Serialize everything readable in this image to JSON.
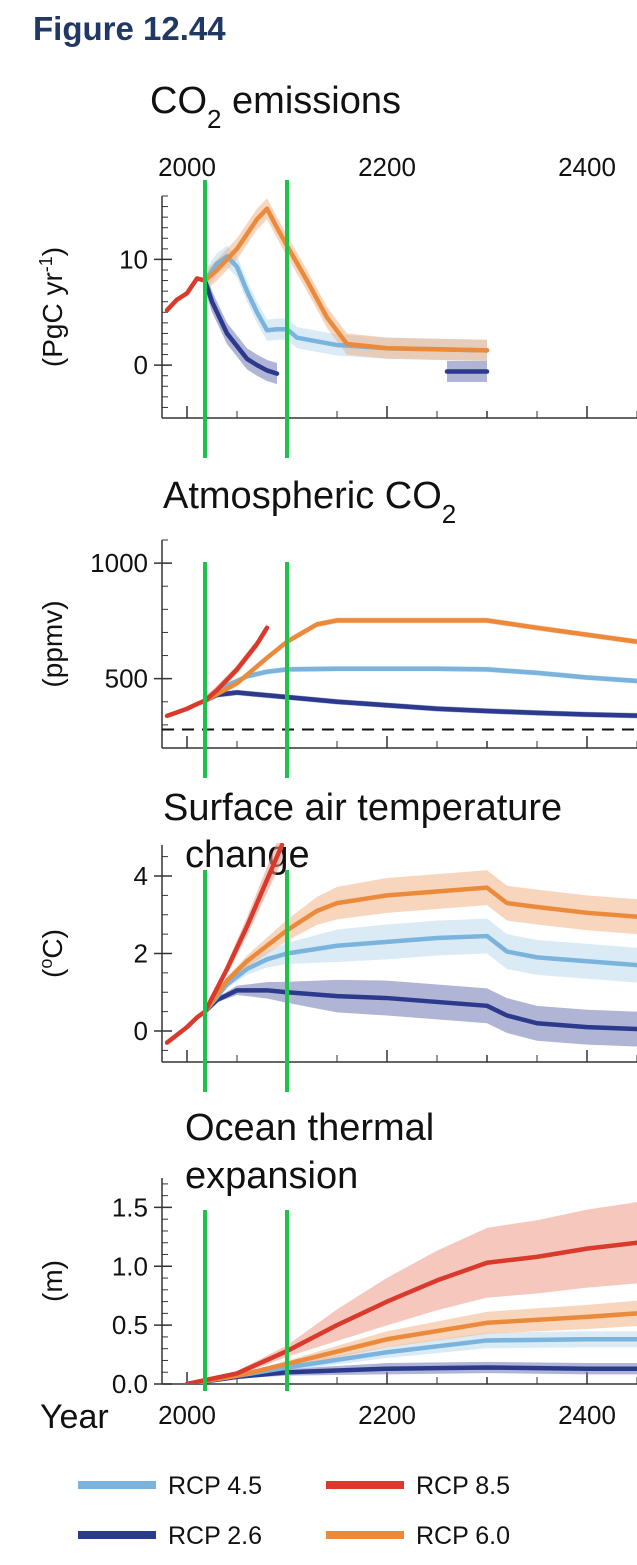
{
  "figure_label": "Figure 12.44",
  "colors": {
    "rcp26": "#2b3a8c",
    "rcp45": "#7ab4dd",
    "rcp60": "#ec8a3c",
    "rcp85": "#d93a2b",
    "rcp26_band": "#6f77b3",
    "rcp45_band": "#bcdbef",
    "rcp60_band": "#f3b586",
    "rcp85_band": "#ef9a86",
    "marker": "#1ec24a",
    "axis": "#333333"
  },
  "year_axis": {
    "label": "Year",
    "ticks": [
      "2000",
      "2200",
      "2400"
    ]
  },
  "markers": {
    "years": [
      2018,
      2100
    ]
  },
  "legend": [
    {
      "label": "RCP 4.5",
      "key": "rcp45"
    },
    {
      "label": "RCP 8.5",
      "key": "rcp85"
    },
    {
      "label": "RCP 2.6",
      "key": "rcp26"
    },
    {
      "label": "RCP 6.0",
      "key": "rcp60"
    }
  ],
  "chart_data": [
    {
      "type": "line",
      "id": "emissions",
      "title_main": "CO",
      "title_sub": "2",
      "title_rest": " emissions",
      "ylabel_main": "(PgC yr",
      "ylabel_sup": "-1",
      "ylabel_end": ")",
      "ylim": [
        -5,
        16
      ],
      "ytick_values": [
        0,
        10
      ],
      "ytick_labels": [
        "0",
        "10"
      ],
      "series": [
        {
          "name": "historical",
          "color_key": "rcp85",
          "x": [
            1980,
            1990,
            2000,
            2010,
            2018
          ],
          "y": [
            5.2,
            6.2,
            6.8,
            8.2,
            8.0
          ]
        },
        {
          "name": "RCP 2.6",
          "color_key": "rcp26",
          "x": [
            2018,
            2025,
            2040,
            2060,
            2070,
            2080,
            2090
          ],
          "y": [
            8.0,
            6.0,
            3.0,
            0.6,
            0.0,
            -0.5,
            -0.8
          ]
        },
        {
          "name": "RCP 2.6 (late)",
          "color_key": "rcp26",
          "x": [
            2260,
            2300
          ],
          "y": [
            -0.6,
            -0.6
          ]
        },
        {
          "name": "RCP 4.5",
          "color_key": "rcp45",
          "x": [
            2018,
            2030,
            2040,
            2050,
            2060,
            2070,
            2080,
            2090,
            2100,
            2110,
            2150,
            2200,
            2250,
            2300
          ],
          "y": [
            8.0,
            9.6,
            10.3,
            9.3,
            7.0,
            5.0,
            3.3,
            3.4,
            3.4,
            2.6,
            1.9,
            1.6,
            1.5,
            1.4
          ]
        },
        {
          "name": "RCP 6.0",
          "color_key": "rcp60",
          "x": [
            2018,
            2030,
            2050,
            2070,
            2080,
            2090,
            2100,
            2120,
            2140,
            2160,
            2200,
            2250,
            2300
          ],
          "y": [
            8.0,
            9.0,
            11.0,
            13.8,
            14.8,
            13.0,
            11.3,
            8.0,
            4.5,
            2.0,
            1.6,
            1.5,
            1.4
          ]
        }
      ]
    },
    {
      "type": "line",
      "id": "atmos",
      "title_main": "Atmospheric CO",
      "title_sub": "2",
      "title_rest": "",
      "ylabel_main": "(ppmv)",
      "ylabel_sup": "",
      "ylabel_end": "",
      "ylim": [
        200,
        1100
      ],
      "ytick_values": [
        500,
        1000
      ],
      "ytick_labels": [
        "500",
        "1000"
      ],
      "reference_level": 280,
      "series": [
        {
          "name": "RCP 2.6",
          "color_key": "rcp26",
          "x": [
            2018,
            2030,
            2050,
            2100,
            2150,
            2200,
            2250,
            2300,
            2350,
            2400,
            2450
          ],
          "y": [
            405,
            430,
            440,
            420,
            400,
            385,
            370,
            360,
            352,
            345,
            340
          ]
        },
        {
          "name": "RCP 4.5",
          "color_key": "rcp45",
          "x": [
            2018,
            2040,
            2060,
            2080,
            2100,
            2150,
            2200,
            2250,
            2300,
            2350,
            2400,
            2450
          ],
          "y": [
            405,
            470,
            510,
            530,
            540,
            543,
            543,
            543,
            540,
            525,
            505,
            490
          ]
        },
        {
          "name": "RCP 6.0",
          "color_key": "rcp60",
          "x": [
            2018,
            2050,
            2080,
            2100,
            2130,
            2150,
            2200,
            2250,
            2300,
            2350,
            2400,
            2450
          ],
          "y": [
            405,
            480,
            590,
            660,
            735,
            752,
            752,
            752,
            752,
            720,
            690,
            660
          ]
        },
        {
          "name": "historical",
          "color_key": "rcp85",
          "x": [
            1980,
            1990,
            2000,
            2010,
            2018
          ],
          "y": [
            339,
            354,
            370,
            390,
            405
          ]
        },
        {
          "name": "RCP 8.5",
          "color_key": "rcp85",
          "x": [
            2018,
            2030,
            2050,
            2070,
            2080
          ],
          "y": [
            405,
            450,
            540,
            650,
            720
          ]
        }
      ]
    },
    {
      "type": "line",
      "id": "temp",
      "title_main": "Surface air temperature",
      "title_sub": "",
      "title_rest": "",
      "title_line2": "change",
      "ylabel_main": "(",
      "ylabel_sup": "o",
      "ylabel_end": "C)",
      "ylim": [
        -0.8,
        4.8
      ],
      "ytick_values": [
        0,
        2,
        4
      ],
      "ytick_labels": [
        "0",
        "2",
        "4"
      ],
      "series": [
        {
          "name": "RCP 2.6",
          "color_key": "rcp26",
          "x": [
            2018,
            2030,
            2050,
            2080,
            2100,
            2150,
            2200,
            2250,
            2300,
            2320,
            2350,
            2400,
            2450
          ],
          "y": [
            0.5,
            0.8,
            1.05,
            1.05,
            1.0,
            0.9,
            0.85,
            0.75,
            0.65,
            0.4,
            0.2,
            0.1,
            0.05
          ]
        },
        {
          "name": "RCP 4.5",
          "color_key": "rcp45",
          "x": [
            2018,
            2040,
            2060,
            2080,
            2100,
            2150,
            2200,
            2250,
            2300,
            2320,
            2350,
            2400,
            2450
          ],
          "y": [
            0.5,
            1.2,
            1.6,
            1.85,
            2.0,
            2.2,
            2.3,
            2.4,
            2.45,
            2.05,
            1.9,
            1.8,
            1.7
          ]
        },
        {
          "name": "RCP 6.0",
          "color_key": "rcp60",
          "x": [
            2018,
            2040,
            2060,
            2080,
            2100,
            2130,
            2150,
            2200,
            2250,
            2300,
            2320,
            2350,
            2400,
            2450
          ],
          "y": [
            0.5,
            1.3,
            1.8,
            2.2,
            2.6,
            3.1,
            3.3,
            3.5,
            3.6,
            3.7,
            3.3,
            3.2,
            3.05,
            2.95
          ]
        },
        {
          "name": "historical",
          "color_key": "rcp85",
          "x": [
            1980,
            1990,
            2000,
            2010,
            2018
          ],
          "y": [
            -0.3,
            -0.1,
            0.1,
            0.35,
            0.5
          ]
        },
        {
          "name": "RCP 8.5",
          "color_key": "rcp85",
          "x": [
            2018,
            2040,
            2060,
            2080,
            2095
          ],
          "y": [
            0.5,
            1.6,
            2.7,
            3.9,
            4.8
          ]
        }
      ]
    },
    {
      "type": "line",
      "id": "ocean",
      "title_main": "Ocean thermal",
      "title_sub": "",
      "title_rest": "",
      "title_line2": "expansion",
      "ylabel_main": "(m)",
      "ylabel_sup": "",
      "ylabel_end": "",
      "ylim": [
        0,
        1.75
      ],
      "ytick_values": [
        0,
        0.5,
        1.0,
        1.5
      ],
      "ytick_labels": [
        "0.0",
        "0.5",
        "1.0",
        "1.5"
      ],
      "series": [
        {
          "name": "RCP 2.6",
          "color_key": "rcp26",
          "x": [
            2000,
            2050,
            2100,
            2200,
            2300,
            2400,
            2450
          ],
          "y": [
            0.0,
            0.06,
            0.1,
            0.13,
            0.14,
            0.13,
            0.13
          ]
        },
        {
          "name": "RCP 4.5",
          "color_key": "rcp45",
          "x": [
            2000,
            2050,
            2100,
            2200,
            2300,
            2400,
            2450
          ],
          "y": [
            0.0,
            0.07,
            0.14,
            0.27,
            0.37,
            0.38,
            0.38
          ]
        },
        {
          "name": "RCP 6.0",
          "color_key": "rcp60",
          "x": [
            2000,
            2050,
            2100,
            2200,
            2300,
            2400,
            2450
          ],
          "y": [
            0.0,
            0.07,
            0.17,
            0.38,
            0.52,
            0.57,
            0.6
          ]
        },
        {
          "name": "RCP 8.5",
          "color_key": "rcp85",
          "x": [
            2000,
            2050,
            2100,
            2150,
            2200,
            2250,
            2300,
            2350,
            2400,
            2450
          ],
          "y": [
            0.0,
            0.09,
            0.28,
            0.5,
            0.7,
            0.88,
            1.03,
            1.08,
            1.15,
            1.2
          ]
        }
      ]
    }
  ]
}
